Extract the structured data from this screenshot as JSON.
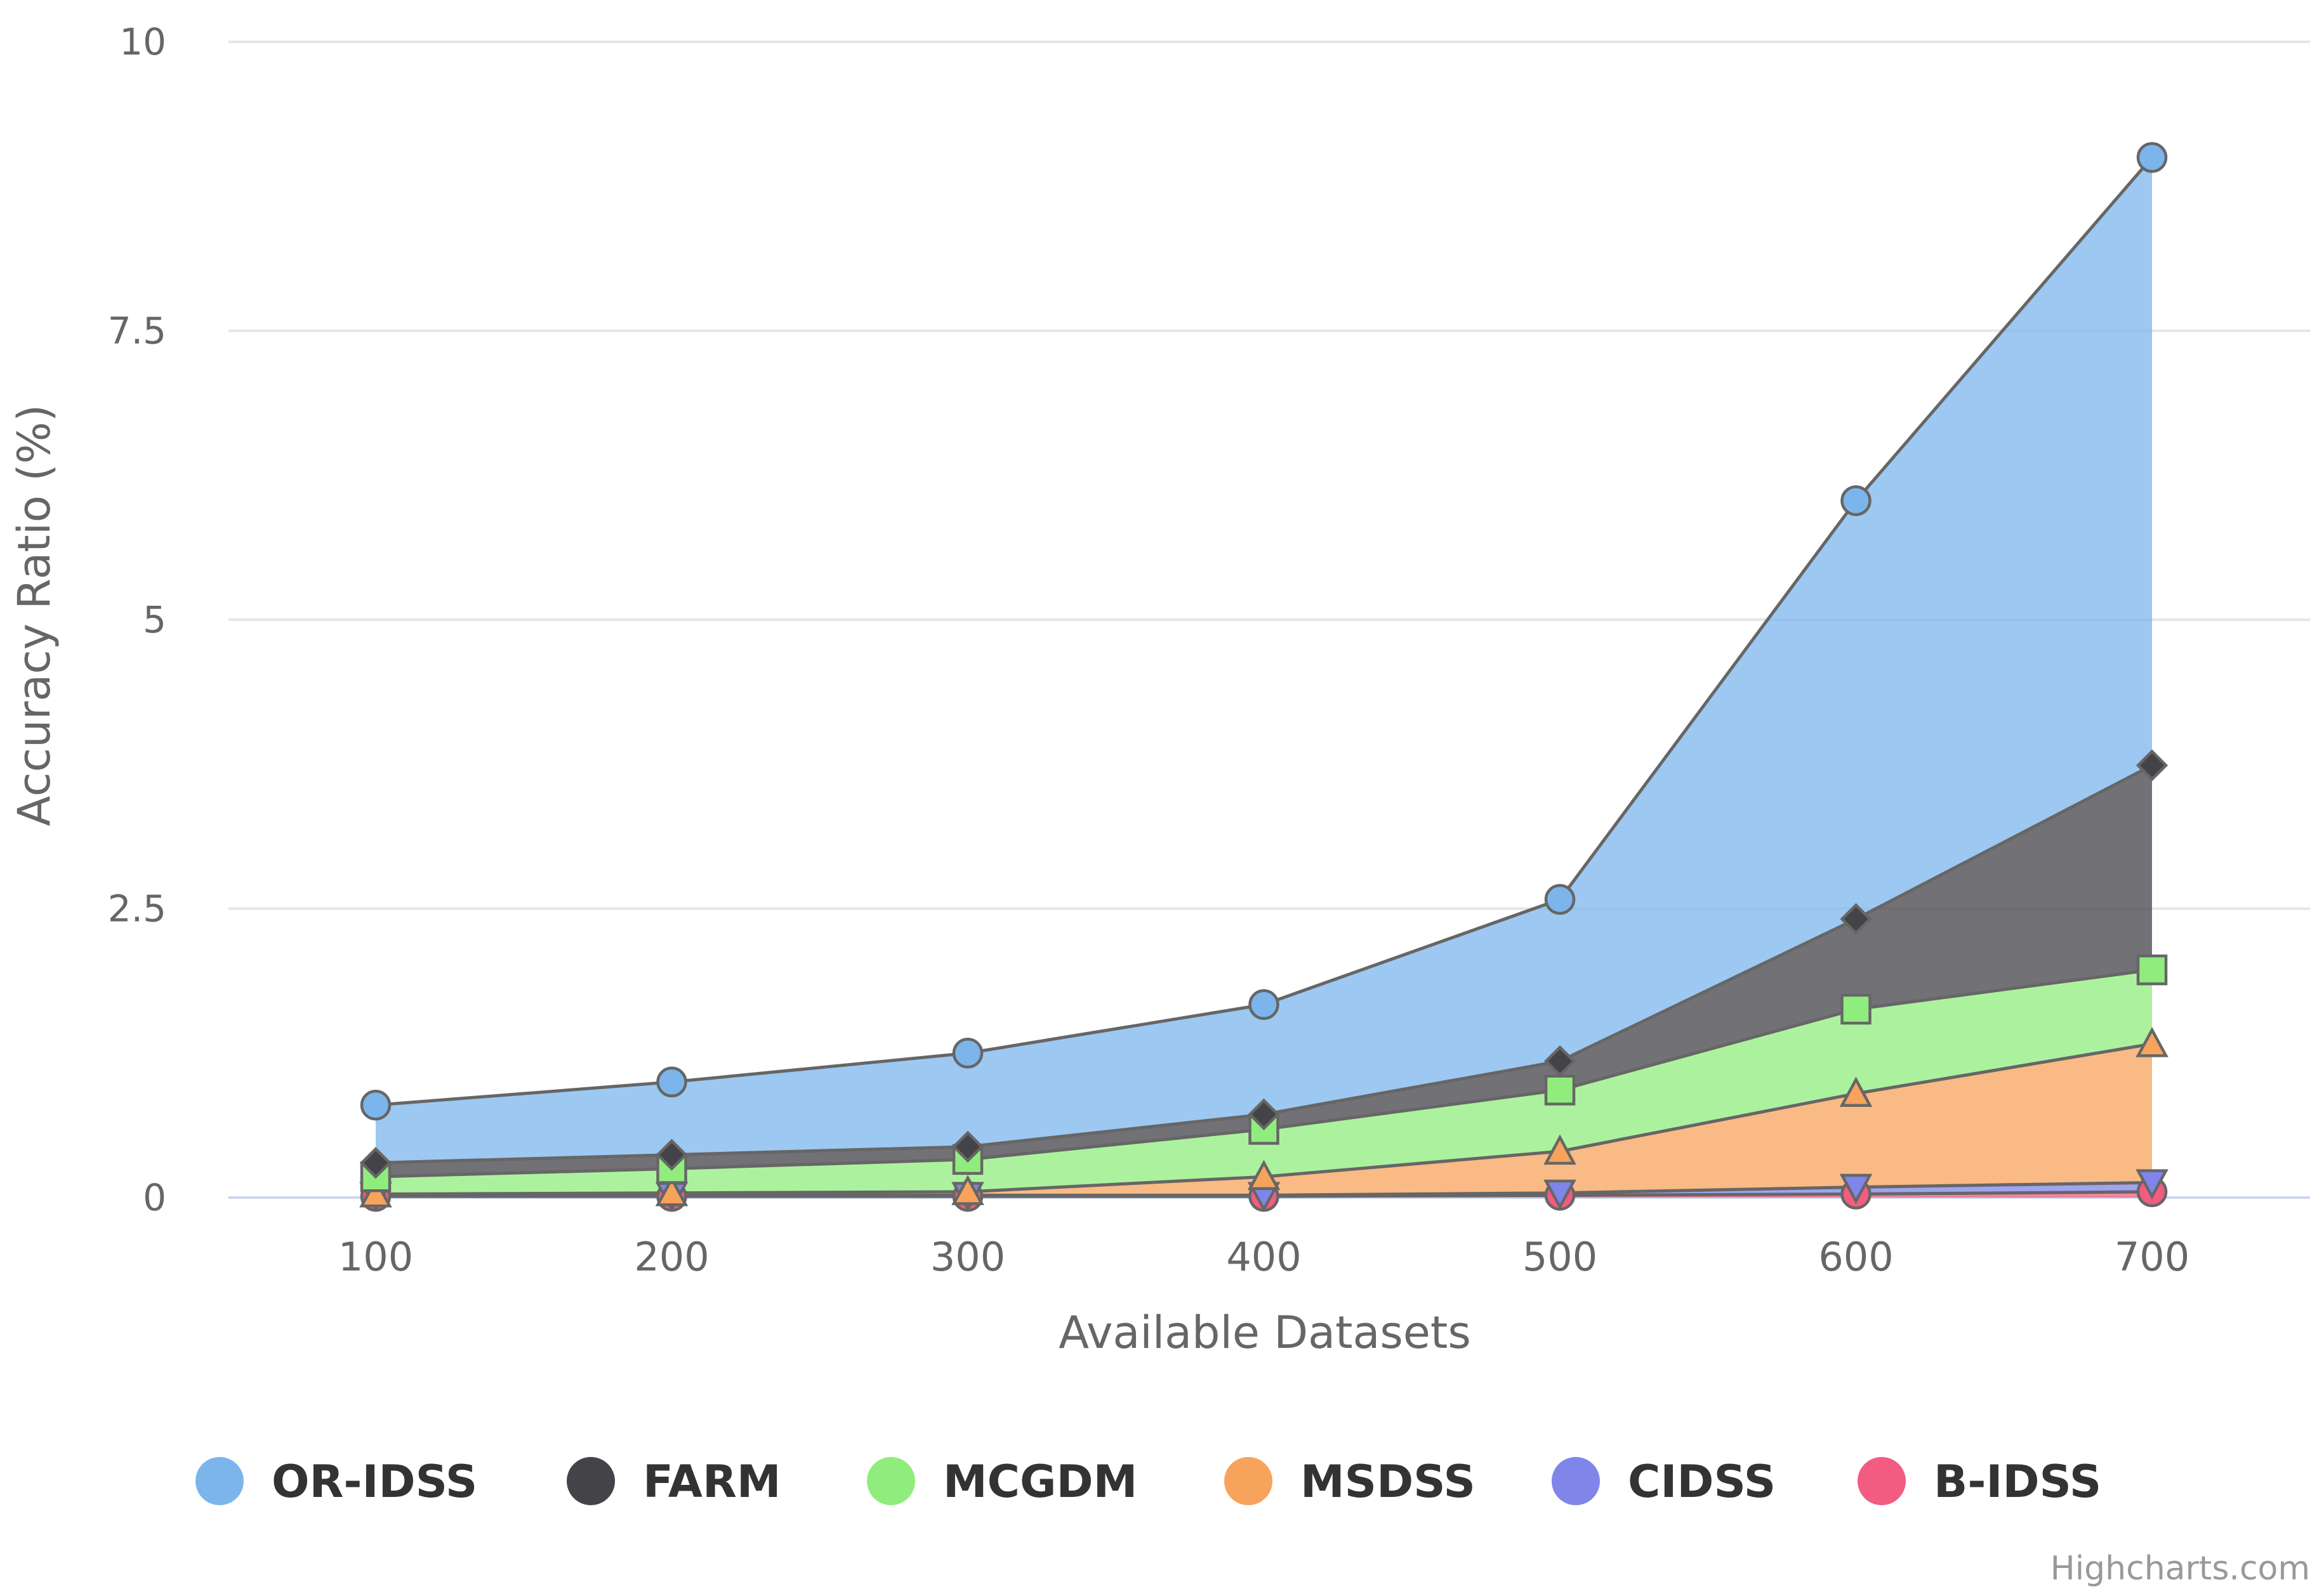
{
  "chart_data": {
    "type": "area",
    "stacking": "normal",
    "title": "",
    "xlabel": "Available Datasets",
    "ylabel": "Accuracy Ratio (%)",
    "categories": [
      "100",
      "200",
      "300",
      "400",
      "500",
      "600",
      "700"
    ],
    "ylim": [
      0,
      10
    ],
    "yticks": [
      0,
      2.5,
      5,
      7.5,
      10
    ],
    "ytick_labels": [
      "0",
      "2.5",
      "5",
      "7.5",
      "10"
    ],
    "grid": true,
    "legend_position": "bottom",
    "credit": "Highcharts.com",
    "series": [
      {
        "name": "OR-IDSS",
        "color": "#7cb5ec",
        "marker": "circle",
        "values": [
          0.5,
          0.63,
          0.81,
          0.95,
          1.4,
          3.62,
          5.26
        ]
      },
      {
        "name": "FARM",
        "color": "#434348",
        "marker": "diamond",
        "values": [
          0.12,
          0.12,
          0.11,
          0.13,
          0.25,
          0.78,
          1.77
        ]
      },
      {
        "name": "MCGDM",
        "color": "#90ed7d",
        "marker": "square",
        "values": [
          0.15,
          0.21,
          0.28,
          0.41,
          0.53,
          0.73,
          0.64
        ]
      },
      {
        "name": "MSDSS",
        "color": "#f7a35c",
        "marker": "triangle",
        "values": [
          0.01,
          0.02,
          0.03,
          0.16,
          0.36,
          0.81,
          1.2
        ]
      },
      {
        "name": "CIDSS",
        "color": "#8085e9",
        "marker": "triangle-down",
        "values": [
          0.01,
          0.01,
          0.01,
          0.01,
          0.02,
          0.06,
          0.08
        ]
      },
      {
        "name": "B-IDSS",
        "color": "#f15c80",
        "marker": "circle",
        "values": [
          0.01,
          0.01,
          0.01,
          0.01,
          0.02,
          0.03,
          0.05
        ]
      }
    ]
  }
}
